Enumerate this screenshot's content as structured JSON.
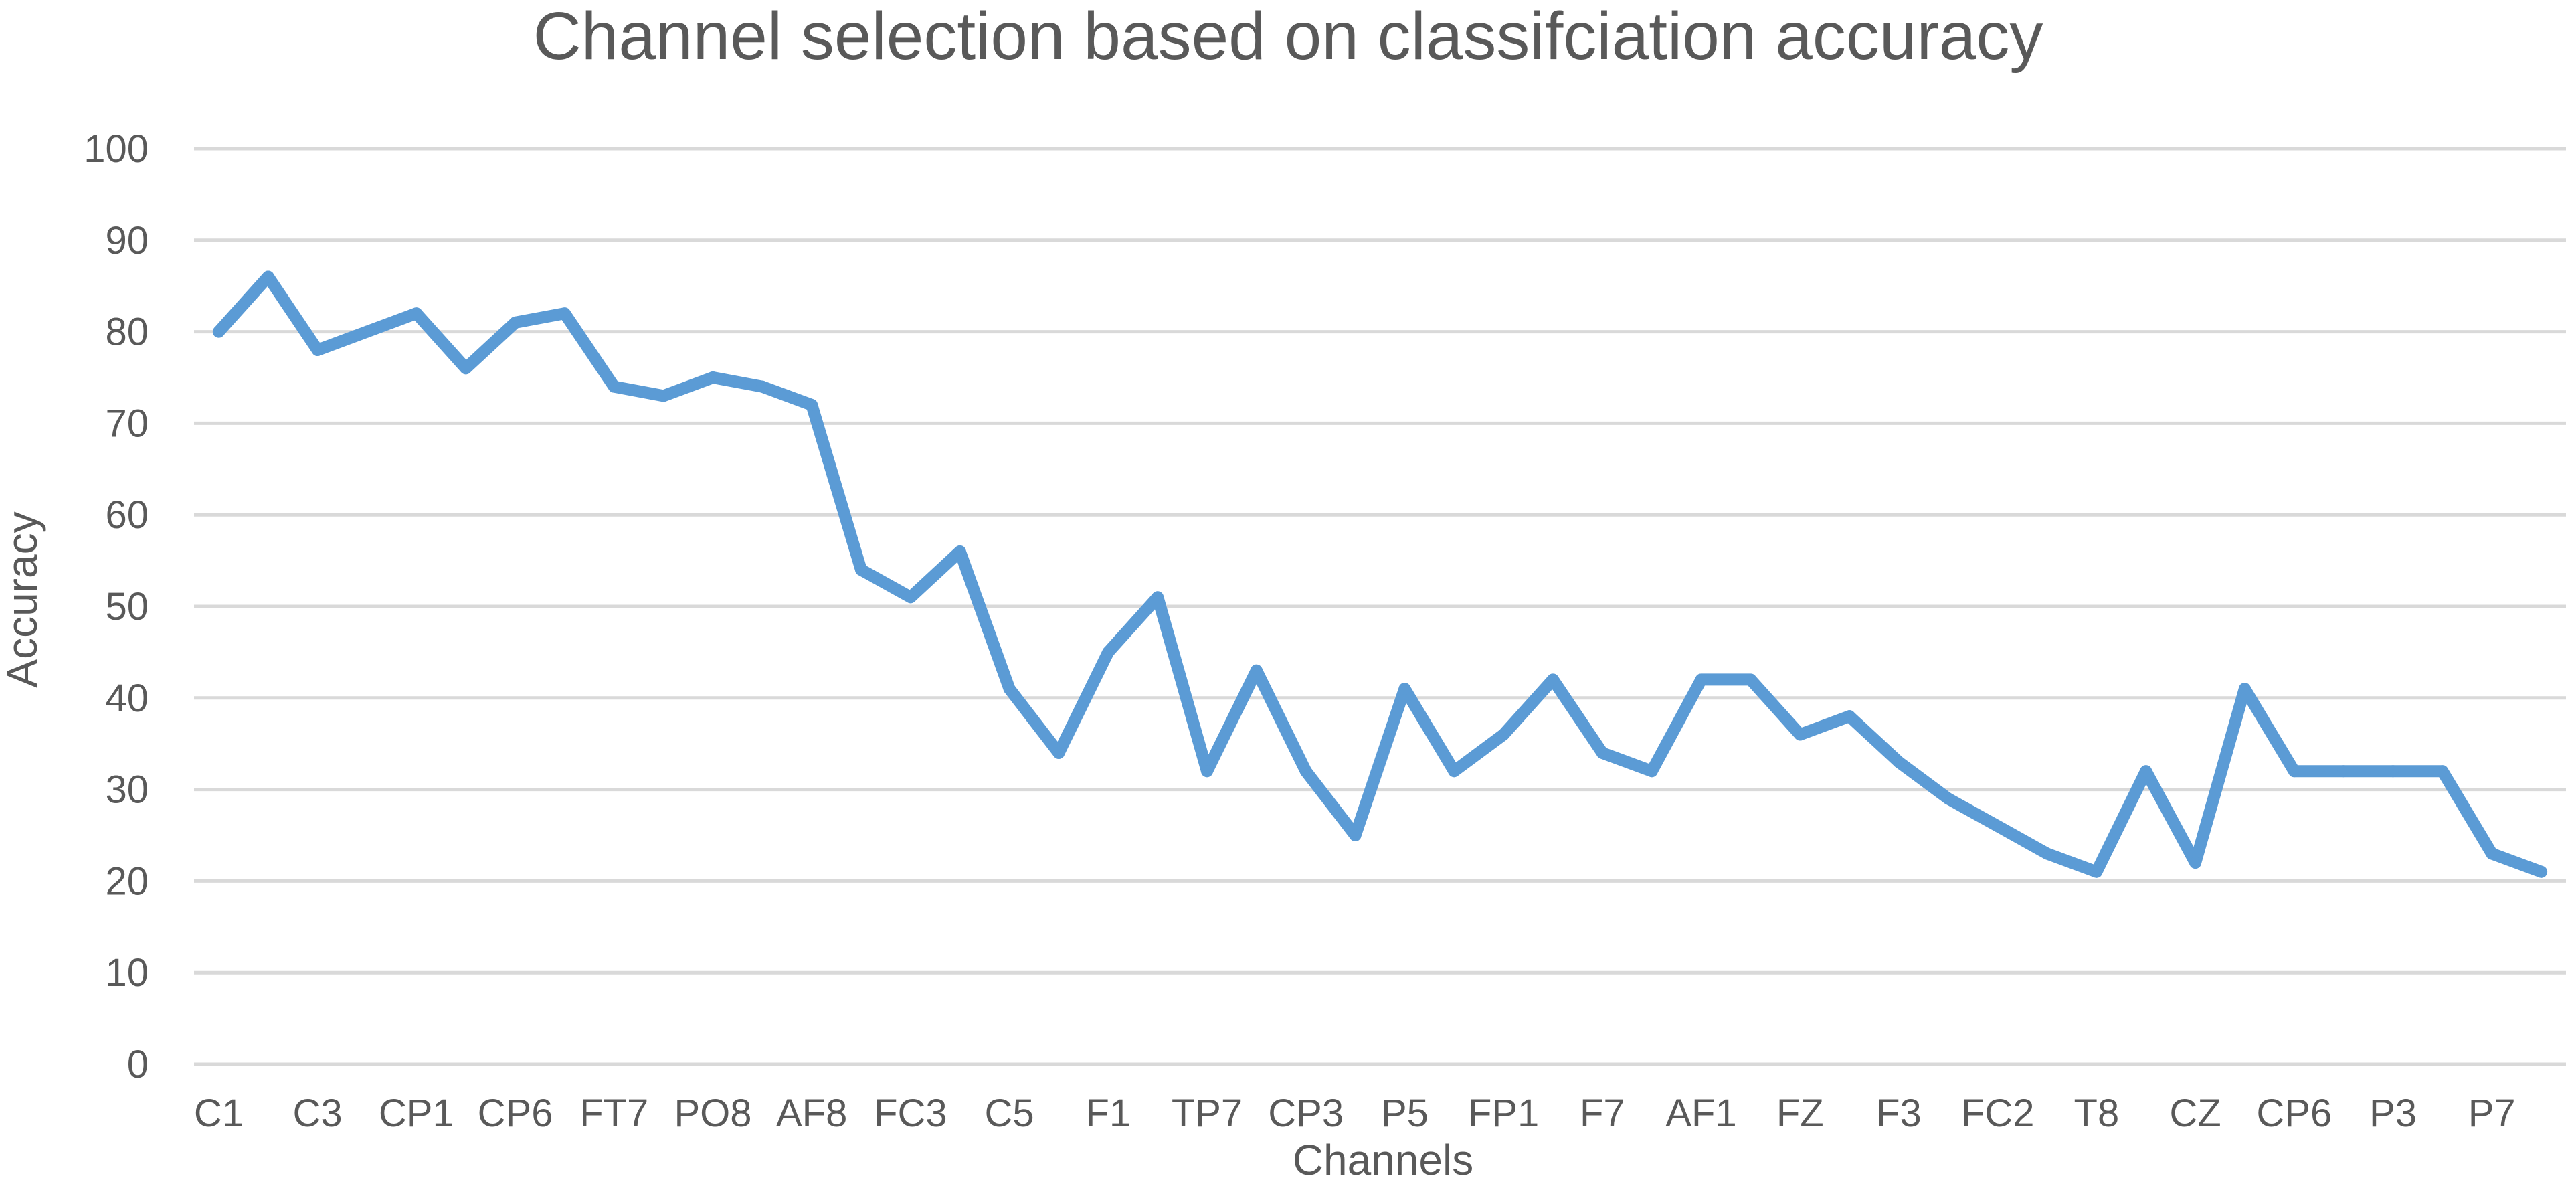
{
  "chart_data": {
    "type": "line",
    "title": "Channel selection based on classifciation accuracy",
    "xlabel": "Channels",
    "ylabel": "Accuracy",
    "ylim": [
      0,
      100
    ],
    "yticks": [
      0,
      10,
      20,
      30,
      40,
      50,
      60,
      70,
      80,
      90,
      100
    ],
    "grid": true,
    "legend": "none",
    "series_color": "#5b9bd5",
    "categories": [
      "C1",
      "",
      "C3",
      "",
      "CP1",
      "",
      "CP6",
      "",
      "FT7",
      "",
      "PO8",
      "",
      "AF8",
      "",
      "FC3",
      "",
      "C5",
      "",
      "F1",
      "",
      "TP7",
      "",
      "CP3",
      "",
      "P5",
      "",
      "FP1",
      "",
      "F7",
      "",
      "AF1",
      "",
      "FZ",
      "",
      "F3",
      "",
      "FC2",
      "",
      "T8",
      "",
      "CZ",
      "",
      "CP6",
      "",
      "P3",
      "",
      "P7",
      ""
    ],
    "series": [
      {
        "values": [
          80,
          86,
          78,
          80,
          82,
          76,
          81,
          82,
          74,
          73,
          75,
          74,
          72,
          54,
          51,
          56,
          41,
          34,
          45,
          51,
          32,
          43,
          32,
          25,
          41,
          32,
          36,
          42,
          34,
          32,
          42,
          42,
          36,
          38,
          33,
          29,
          26,
          23,
          21,
          32,
          22,
          41,
          32,
          32,
          32,
          32,
          23,
          21
        ]
      }
    ]
  }
}
